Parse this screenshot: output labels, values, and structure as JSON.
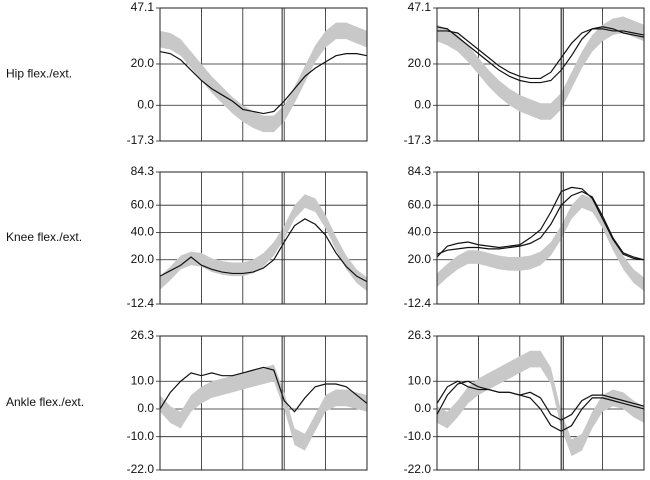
{
  "chart_data": [
    {
      "type": "line",
      "ylabel": "Hip flex./ext.",
      "ylim": [
        -17.3,
        47.1
      ],
      "yticks": [
        47.1,
        {
          "value": 20,
          "label": "20.0"
        },
        {
          "value": 0,
          "label": "0.0"
        },
        -17.3
      ],
      "xlim": [
        0,
        100
      ],
      "x": [
        0,
        5,
        10,
        15,
        20,
        25,
        30,
        35,
        40,
        45,
        50,
        55,
        60,
        65,
        70,
        75,
        80,
        85,
        90,
        95,
        100
      ],
      "grid": true,
      "toe_off": [
        59
      ],
      "band": {
        "color": "#c8c8c8",
        "width": 8,
        "values": [
          32,
          31,
          28,
          22,
          16,
          10,
          5,
          0,
          -4,
          -7,
          -9,
          -9,
          -4,
          5,
          15,
          25,
          32,
          36,
          36,
          34,
          32
        ]
      },
      "series": [
        {
          "color": "#111111",
          "values": [
            26,
            25,
            22,
            17,
            12,
            8,
            5,
            2,
            -2,
            -3,
            -4,
            -3,
            2,
            8,
            14,
            18,
            21,
            24,
            25,
            25,
            24
          ]
        }
      ]
    },
    {
      "type": "line",
      "ylim": [
        -17.3,
        47.1
      ],
      "yticks": [
        47.1,
        {
          "value": 20,
          "label": "20.0"
        },
        {
          "value": 0,
          "label": "0.0"
        },
        -17.3
      ],
      "xlim": [
        0,
        100
      ],
      "x": [
        0,
        5,
        10,
        15,
        20,
        25,
        30,
        35,
        40,
        45,
        50,
        55,
        60,
        65,
        70,
        75,
        80,
        85,
        90,
        95,
        100
      ],
      "grid": true,
      "toe_off": [
        60,
        61
      ],
      "band": {
        "color": "#c8c8c8",
        "width": 8,
        "values": [
          35,
          33,
          30,
          25,
          19,
          13,
          8,
          4,
          1,
          -1,
          -3,
          -3,
          2,
          12,
          22,
          30,
          35,
          38,
          39,
          37,
          35
        ]
      },
      "series": [
        {
          "color": "#111111",
          "values": [
            38,
            37,
            33,
            29,
            25,
            21,
            17,
            14,
            12,
            11,
            11,
            12,
            17,
            24,
            32,
            37,
            38,
            37,
            35,
            34,
            33
          ]
        },
        {
          "color": "#111111",
          "values": [
            36,
            36,
            35,
            31,
            27,
            23,
            19,
            16,
            14,
            13,
            13,
            16,
            23,
            30,
            35,
            37,
            37,
            36,
            36,
            35,
            34
          ]
        }
      ]
    },
    {
      "type": "line",
      "ylabel": "Knee flex./ext.",
      "ylim": [
        -12.4,
        84.3
      ],
      "yticks": [
        84.3,
        {
          "value": 60,
          "label": "60.0"
        },
        {
          "value": 40,
          "label": "40.0"
        },
        {
          "value": 20,
          "label": "20.0"
        },
        -12.4
      ],
      "xlim": [
        0,
        100
      ],
      "x": [
        0,
        5,
        10,
        15,
        20,
        25,
        30,
        35,
        40,
        45,
        50,
        55,
        60,
        65,
        70,
        75,
        80,
        85,
        90,
        95,
        100
      ],
      "grid": true,
      "toe_off": [
        59
      ],
      "band": {
        "color": "#c8c8c8",
        "width": 10,
        "values": [
          3,
          10,
          18,
          21,
          20,
          16,
          14,
          13,
          13,
          15,
          20,
          28,
          40,
          55,
          63,
          60,
          48,
          32,
          18,
          8,
          2
        ]
      },
      "series": [
        {
          "color": "#111111",
          "values": [
            8,
            12,
            16,
            22,
            16,
            13,
            11,
            10,
            10,
            11,
            14,
            20,
            33,
            45,
            50,
            46,
            38,
            25,
            15,
            8,
            4
          ]
        }
      ]
    },
    {
      "type": "line",
      "ylim": [
        -12.4,
        84.3
      ],
      "yticks": [
        84.3,
        {
          "value": 60,
          "label": "60.0"
        },
        {
          "value": 40,
          "label": "40.0"
        },
        {
          "value": 20,
          "label": "20.0"
        },
        -12.4
      ],
      "xlim": [
        0,
        100
      ],
      "x": [
        0,
        5,
        10,
        15,
        20,
        25,
        30,
        35,
        40,
        45,
        50,
        55,
        60,
        65,
        70,
        75,
        80,
        85,
        90,
        95,
        100
      ],
      "grid": true,
      "toe_off": [
        60,
        61
      ],
      "band": {
        "color": "#c8c8c8",
        "width": 10,
        "values": [
          5,
          12,
          18,
          22,
          22,
          20,
          18,
          17,
          17,
          18,
          21,
          28,
          40,
          55,
          63,
          60,
          48,
          32,
          18,
          8,
          2
        ]
      },
      "series": [
        {
          "color": "#111111",
          "values": [
            22,
            30,
            32,
            33,
            31,
            30,
            29,
            30,
            31,
            36,
            42,
            55,
            70,
            73,
            72,
            65,
            50,
            35,
            24,
            21,
            20
          ]
        },
        {
          "color": "#111111",
          "values": [
            24,
            27,
            28,
            29,
            29,
            28,
            28,
            29,
            30,
            32,
            36,
            46,
            60,
            67,
            70,
            66,
            52,
            36,
            25,
            22,
            20
          ]
        }
      ]
    },
    {
      "type": "line",
      "ylabel": "Ankle flex./ext.",
      "ylim": [
        -22,
        26.3
      ],
      "yticks": [
        26.3,
        {
          "value": 10,
          "label": "10.0"
        },
        {
          "value": 0,
          "label": "0.0"
        },
        {
          "value": -10,
          "label": "-10.0"
        },
        {
          "value": -22,
          "label": "-22.0"
        }
      ],
      "xlim": [
        0,
        100
      ],
      "x": [
        0,
        5,
        10,
        15,
        20,
        25,
        30,
        35,
        40,
        45,
        50,
        55,
        60,
        65,
        70,
        75,
        80,
        85,
        90,
        95,
        100
      ],
      "grid": true,
      "toe_off": [
        59
      ],
      "band": {
        "color": "#c8c8c8",
        "width": 6,
        "values": [
          2,
          -2,
          -4,
          2,
          5,
          7,
          8,
          9,
          10,
          11,
          12,
          13,
          3,
          -10,
          -12,
          -5,
          2,
          4,
          4,
          3,
          2
        ]
      },
      "series": [
        {
          "color": "#111111",
          "values": [
            0,
            6,
            10,
            13,
            12,
            13,
            12,
            12,
            13,
            14,
            15,
            14,
            3,
            -1,
            4,
            8,
            9,
            9,
            8,
            5,
            2
          ]
        }
      ]
    },
    {
      "type": "line",
      "ylim": [
        -22,
        26.3
      ],
      "yticks": [
        26.3,
        {
          "value": 10,
          "label": "10.0"
        },
        {
          "value": 0,
          "label": "0.0"
        },
        {
          "value": -10,
          "label": "-10.0"
        },
        {
          "value": -22,
          "label": "-22.0"
        }
      ],
      "xlim": [
        0,
        100
      ],
      "x": [
        0,
        5,
        10,
        15,
        20,
        25,
        30,
        35,
        40,
        45,
        50,
        55,
        60,
        65,
        70,
        75,
        80,
        85,
        90,
        95,
        100
      ],
      "grid": true,
      "toe_off": [
        60,
        61
      ],
      "band": {
        "color": "#c8c8c8",
        "width": 6,
        "values": [
          -2,
          -4,
          0,
          5,
          8,
          10,
          12,
          14,
          16,
          18,
          18,
          12,
          -4,
          -14,
          -12,
          -4,
          2,
          4,
          3,
          0,
          -2
        ]
      },
      "series": [
        {
          "color": "#111111",
          "values": [
            -2,
            5,
            9,
            10,
            8,
            7,
            6,
            6,
            5,
            6,
            4,
            -2,
            -4,
            -2,
            3,
            5,
            5,
            4,
            3,
            2,
            1
          ]
        },
        {
          "color": "#111111",
          "values": [
            2,
            8,
            10,
            8,
            7,
            7,
            6,
            6,
            5,
            4,
            0,
            -6,
            -8,
            -6,
            0,
            4,
            4,
            3,
            2,
            1,
            0
          ]
        }
      ]
    }
  ]
}
